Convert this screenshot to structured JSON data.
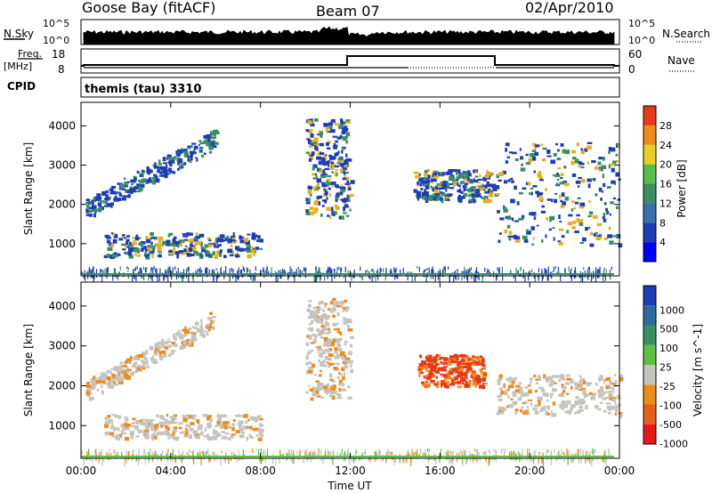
{
  "header": {
    "station": "Goose Bay (fitACF)",
    "beam": "Beam 07",
    "date": "02/Apr/2010"
  },
  "noise_panel": {
    "left_label": "N.Sky",
    "right_label": "N.Search",
    "ticks": [
      "10^5",
      "10^0"
    ]
  },
  "freq_panel": {
    "left_label_1": "Freq.",
    "left_label_2": "[MHz]",
    "left_ticks": [
      "18",
      "8"
    ],
    "right_label": "Nave",
    "right_ticks": [
      "60",
      "0"
    ]
  },
  "cpid": {
    "label": "CPID",
    "value": "themis (tau) 3310"
  },
  "colors": {
    "low": "#1d3cb8",
    "mid": "#3a8f5f",
    "high": "#e8b020",
    "grey": "#c4c4c0",
    "red": "#e8391a",
    "orange": "#f08a18"
  },
  "chart_data": [
    {
      "type": "heatmap",
      "ylabel": "Slant Range [km]",
      "xlabel": "",
      "xticks": [
        "00:00",
        "04:00",
        "08:00",
        "12:00",
        "16:00",
        "20:00",
        "00:00"
      ],
      "yticks": [
        "1000",
        "2000",
        "3000",
        "4000"
      ],
      "x_range_hours": [
        0,
        24
      ],
      "y_range_km": [
        180,
        4600
      ],
      "colorbar": {
        "label": "Power [dB]",
        "ticks": [
          "4",
          "8",
          "12",
          "16",
          "20",
          "24",
          "28"
        ],
        "colors": [
          "#0000ff",
          "#1d3cb8",
          "#3a6fb0",
          "#3a8f5f",
          "#54c04a",
          "#e8d020",
          "#f08a18",
          "#e8391a"
        ]
      },
      "regions": [
        {
          "t0": 0.2,
          "t1": 6.0,
          "r0": 1900,
          "r1": 3700,
          "level": "low"
        },
        {
          "t0": 1.0,
          "t1": 8.0,
          "r0": 700,
          "r1": 1300,
          "level": "mid"
        },
        {
          "t0": 10.0,
          "t1": 12.0,
          "r0": 1700,
          "r1": 4200,
          "level": "mid"
        },
        {
          "t0": 14.8,
          "t1": 18.5,
          "r0": 2100,
          "r1": 2900,
          "level": "mid"
        },
        {
          "t0": 18.5,
          "t1": 24.0,
          "r0": 1000,
          "r1": 3600,
          "level": "mid"
        }
      ]
    },
    {
      "type": "heatmap",
      "ylabel": "Slant Range [km]",
      "xlabel": "Time UT",
      "xticks": [
        "00:00",
        "04:00",
        "08:00",
        "12:00",
        "16:00",
        "20:00",
        "00:00"
      ],
      "yticks": [
        "1000",
        "2000",
        "3000",
        "4000"
      ],
      "x_range_hours": [
        0,
        24
      ],
      "y_range_km": [
        180,
        4600
      ],
      "colorbar": {
        "label": "Velocity [m s^-1]",
        "ticks": [
          "1000",
          "500",
          "100",
          "25",
          "-25",
          "-100",
          "-500",
          "-1000"
        ],
        "colors": [
          "#1d3cb8",
          "#2e6ca0",
          "#3a8f5f",
          "#5dc040",
          "#c4c4c0",
          "#f08a18",
          "#e86018",
          "#e81818"
        ]
      },
      "regions": [
        {
          "t0": 0.2,
          "t1": 6.0,
          "r0": 1900,
          "r1": 3700,
          "level": "grey"
        },
        {
          "t0": 1.0,
          "t1": 8.0,
          "r0": 700,
          "r1": 1300,
          "level": "grey"
        },
        {
          "t0": 10.0,
          "t1": 12.0,
          "r0": 1700,
          "r1": 4200,
          "level": "grey"
        },
        {
          "t0": 15.0,
          "t1": 18.0,
          "r0": 2000,
          "r1": 2800,
          "level": "red"
        },
        {
          "t0": 18.5,
          "t1": 24.0,
          "r0": 1300,
          "r1": 2300,
          "level": "grey"
        }
      ]
    }
  ]
}
